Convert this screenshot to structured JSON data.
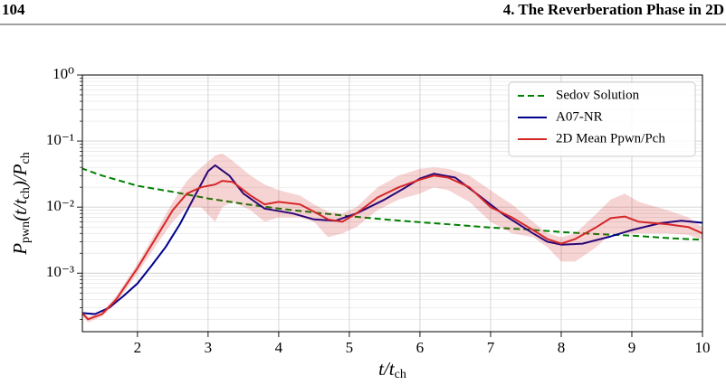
{
  "page_header": {
    "page_number": "104",
    "chapter": "4. The Reverberation Phase in 2D"
  },
  "chart_data": {
    "type": "line",
    "y_label": [
      {
        "text": "P"
      },
      {
        "text": "pwn",
        "sub": true
      },
      {
        "text": "(t/t"
      },
      {
        "text": "ch",
        "sub": true
      },
      {
        "text": ")/P"
      },
      {
        "text": "ch",
        "sub": true
      }
    ],
    "x_label": [
      {
        "text": "t/t"
      },
      {
        "text": "ch",
        "sub": true
      }
    ],
    "xlim": [
      1.22,
      10
    ],
    "xticks": [
      2,
      3,
      4,
      5,
      6,
      7,
      8,
      9,
      10
    ],
    "ylim": [
      0.00013,
      1
    ],
    "log_y": true,
    "grid": true,
    "legend": "upper right",
    "yticks": [
      {
        "value": 0.001,
        "label": "10⁻³"
      },
      {
        "value": 0.01,
        "label": "10⁻²"
      },
      {
        "value": 0.1,
        "label": "10⁻¹"
      },
      {
        "value": 1,
        "label": "10⁰"
      }
    ],
    "yminorticks": [
      0.0002,
      0.0003,
      0.0004,
      0.0005,
      0.0006,
      0.0007,
      0.0008,
      0.0009,
      0.002,
      0.003,
      0.004,
      0.005,
      0.006,
      0.007,
      0.008,
      0.009,
      0.02,
      0.03,
      0.04,
      0.05,
      0.06,
      0.07,
      0.08,
      0.09,
      0.2,
      0.3,
      0.4,
      0.5,
      0.6,
      0.7,
      0.8,
      0.9
    ],
    "series": [
      {
        "name": "Sedov Solution",
        "color": "#008000",
        "dashed": true,
        "x": [
          1.2,
          1.5,
          2,
          2.5,
          3,
          3.5,
          4,
          4.5,
          5,
          5.5,
          6,
          6.5,
          7,
          7.5,
          8,
          8.5,
          9,
          9.5,
          10
        ],
        "values": [
          0.039,
          0.03,
          0.021,
          0.017,
          0.0135,
          0.0112,
          0.0095,
          0.0083,
          0.0073,
          0.0065,
          0.0059,
          0.0054,
          0.0049,
          0.0046,
          0.0042,
          0.0039,
          0.0037,
          0.0034,
          0.0032
        ]
      },
      {
        "name": "A07-NR",
        "color": "#00008b",
        "x": [
          1.2,
          1.4,
          1.6,
          1.8,
          2.0,
          2.2,
          2.4,
          2.6,
          2.8,
          3.0,
          3.1,
          3.3,
          3.5,
          3.8,
          4.2,
          4.5,
          4.8,
          5.1,
          5.5,
          5.8,
          6.0,
          6.2,
          6.5,
          6.8,
          7.2,
          7.6,
          7.8,
          8.0,
          8.3,
          8.7,
          9.0,
          9.4,
          9.7,
          10
        ],
        "values": [
          0.00025,
          0.00024,
          0.0003,
          0.00045,
          0.0007,
          0.0013,
          0.0025,
          0.0055,
          0.014,
          0.035,
          0.043,
          0.03,
          0.016,
          0.0095,
          0.008,
          0.0065,
          0.0062,
          0.008,
          0.013,
          0.02,
          0.027,
          0.032,
          0.028,
          0.016,
          0.0075,
          0.004,
          0.003,
          0.0027,
          0.0028,
          0.0036,
          0.0045,
          0.0057,
          0.0062,
          0.0058
        ]
      },
      {
        "name": "2D Mean Ppwn/Pch",
        "color": "#d62728",
        "x": [
          1.2,
          1.3,
          1.5,
          1.7,
          2.0,
          2.3,
          2.5,
          2.7,
          2.9,
          3.1,
          3.2,
          3.35,
          3.6,
          3.8,
          4.0,
          4.3,
          4.5,
          4.7,
          4.9,
          5.1,
          5.4,
          5.7,
          6.0,
          6.2,
          6.4,
          6.7,
          7.0,
          7.3,
          7.6,
          7.8,
          8.0,
          8.2,
          8.5,
          8.7,
          8.9,
          9.1,
          9.5,
          9.8,
          10
        ],
        "values": [
          0.00026,
          0.0002,
          0.00024,
          0.0004,
          0.0012,
          0.004,
          0.009,
          0.016,
          0.02,
          0.022,
          0.025,
          0.024,
          0.015,
          0.011,
          0.012,
          0.011,
          0.0085,
          0.0065,
          0.006,
          0.008,
          0.014,
          0.02,
          0.026,
          0.03,
          0.028,
          0.02,
          0.01,
          0.007,
          0.0045,
          0.0033,
          0.0028,
          0.0033,
          0.005,
          0.0068,
          0.0072,
          0.006,
          0.0055,
          0.005,
          0.004
        ],
        "band_upper": [
          0.00028,
          0.00022,
          0.00026,
          0.00045,
          0.0014,
          0.005,
          0.012,
          0.025,
          0.04,
          0.06,
          0.065,
          0.05,
          0.03,
          0.022,
          0.018,
          0.015,
          0.011,
          0.0085,
          0.008,
          0.01,
          0.02,
          0.03,
          0.038,
          0.04,
          0.038,
          0.03,
          0.018,
          0.011,
          0.006,
          0.004,
          0.0035,
          0.004,
          0.008,
          0.013,
          0.016,
          0.012,
          0.009,
          0.007,
          0.005
        ],
        "band_lower": [
          0.00024,
          0.00018,
          0.00022,
          0.00035,
          0.001,
          0.003,
          0.006,
          0.01,
          0.01,
          0.006,
          0.01,
          0.012,
          0.009,
          0.006,
          0.007,
          0.007,
          0.006,
          0.0035,
          0.004,
          0.005,
          0.009,
          0.013,
          0.016,
          0.02,
          0.018,
          0.012,
          0.006,
          0.004,
          0.0035,
          0.0025,
          0.0015,
          0.0015,
          0.0025,
          0.004,
          0.004,
          0.004,
          0.004,
          0.0038,
          0.0032
        ]
      }
    ]
  }
}
